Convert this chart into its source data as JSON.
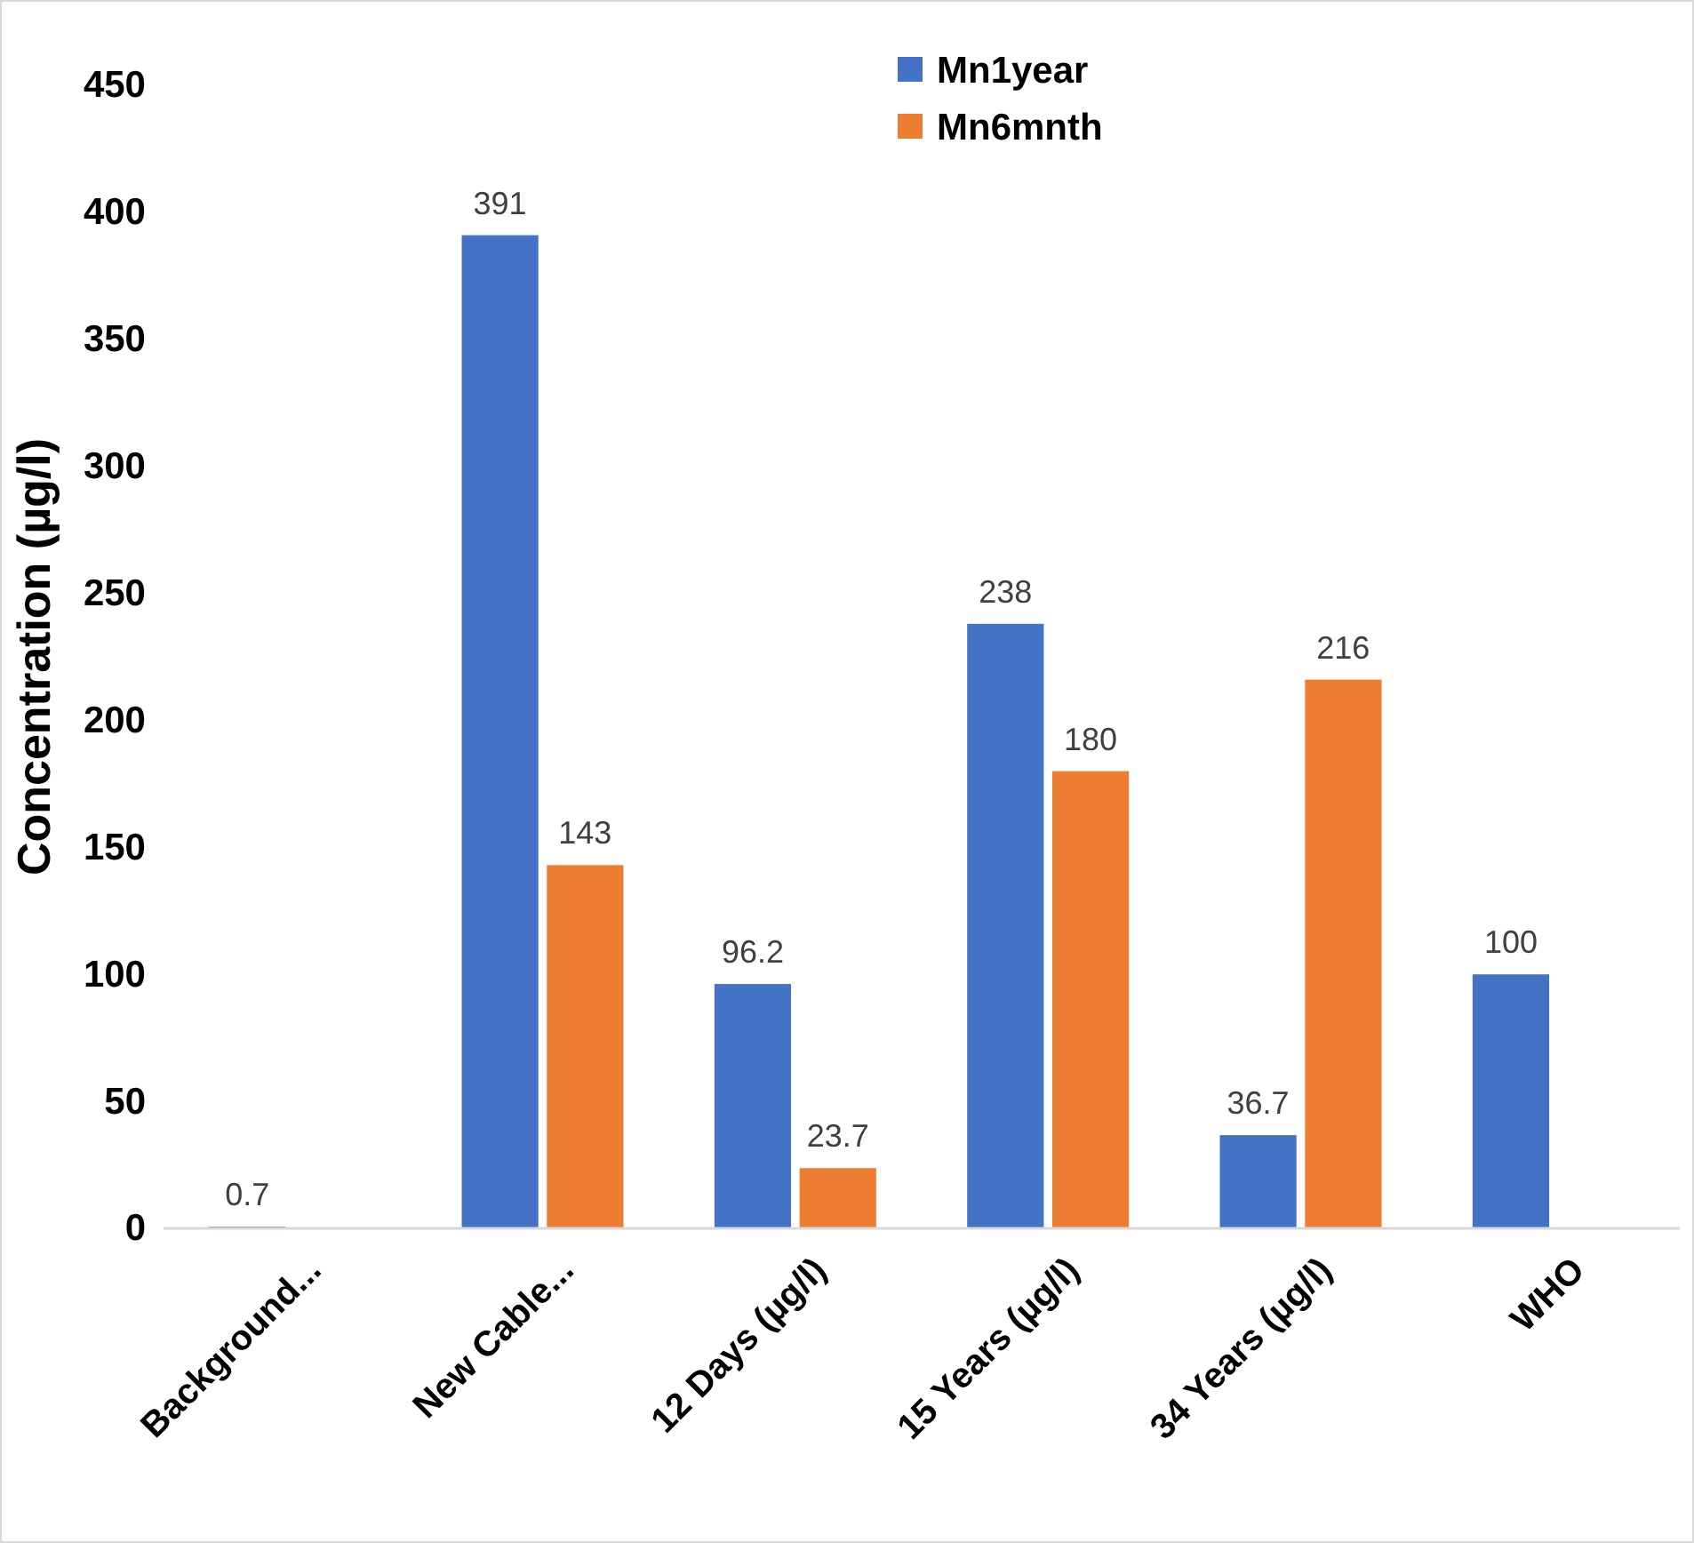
{
  "chart_data": {
    "type": "bar",
    "ylabel": "Concentration (µg/l)",
    "categories": [
      "Background...",
      "New Cable...",
      "12 Days (µg/l)",
      "15 Years (µg/l)",
      "34 Years (µg/l)",
      "WHO"
    ],
    "series": [
      {
        "name": "Mn1year",
        "color": "#4472c4",
        "values": [
          0.7,
          391,
          96.2,
          238,
          36.7,
          100
        ]
      },
      {
        "name": "Mn6mnth",
        "color": "#ed7d31",
        "values": [
          null,
          143,
          23.7,
          180,
          216,
          null
        ]
      }
    ],
    "ylim": [
      0,
      450
    ],
    "yticks": [
      0,
      50,
      100,
      150,
      200,
      250,
      300,
      350,
      400,
      450
    ],
    "grid": false,
    "legend": "top",
    "data_labels": true
  }
}
